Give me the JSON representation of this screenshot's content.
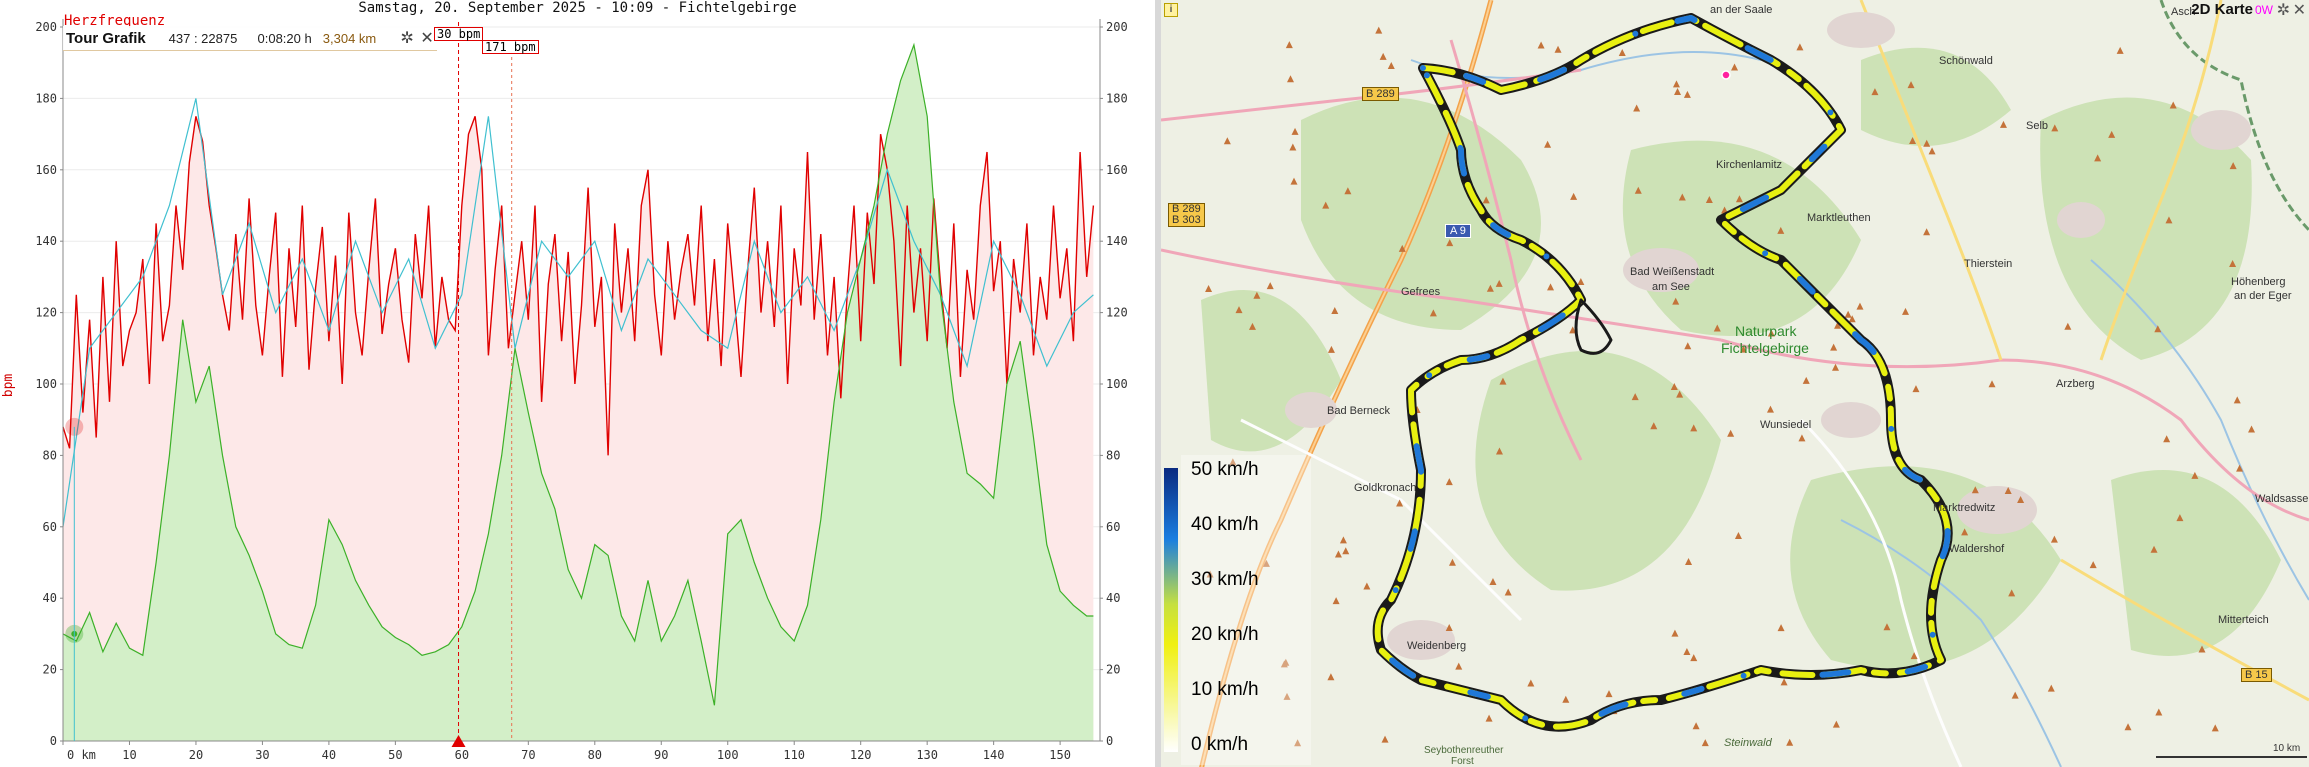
{
  "chart": {
    "title": "Samstag, 20. September 2025 - 10:09 - Fichtelgebirge",
    "series_label": "Herzfrequenz",
    "y_unit": "bpm",
    "tour_box": {
      "title": "Tour Grafik",
      "segment": "437 : 22875",
      "time": "0:08:20 h",
      "distance": "3,304 km"
    },
    "marker_labels": [
      "30 bpm",
      "171 bpm"
    ]
  },
  "map": {
    "title": "2D Karte",
    "watt": "0W",
    "labels": [
      {
        "text": "an der Saale"
      },
      {
        "text": "Asch"
      },
      {
        "text": "Schönwald"
      },
      {
        "text": "Selb"
      },
      {
        "text": "B 289"
      },
      {
        "text": "B 289"
      },
      {
        "text": "B 303"
      },
      {
        "text": "A 9"
      },
      {
        "text": "Kirchenlamitz"
      },
      {
        "text": "Marktleuthen"
      },
      {
        "text": "Thierstein"
      },
      {
        "text": "Höhenberg"
      },
      {
        "text": "an der Eger"
      },
      {
        "text": "Bad Weißenstadt"
      },
      {
        "text": "am See"
      },
      {
        "text": "Gefrees"
      },
      {
        "text": "Naturpark"
      },
      {
        "text": "Fichtelgebirge"
      },
      {
        "text": "Bad Berneck"
      },
      {
        "text": "Wunsiedel"
      },
      {
        "text": "Arzberg"
      },
      {
        "text": "Goldkronach"
      },
      {
        "text": "Marktredwitz"
      },
      {
        "text": "Waldsassen"
      },
      {
        "text": "Waldershof"
      },
      {
        "text": "Weidenberg"
      },
      {
        "text": "Mitterteich"
      },
      {
        "text": "B 15"
      },
      {
        "text": "Steinwald"
      },
      {
        "text": "Seybothenreuther"
      },
      {
        "text": "Forst"
      },
      {
        "text": "10 km"
      }
    ],
    "legend": {
      "unit": "km/h",
      "values": [
        "50",
        "40",
        "30",
        "20",
        "10",
        "0"
      ]
    }
  },
  "chart_data": {
    "type": "line",
    "x_unit": "km",
    "xlim": [
      0,
      156
    ],
    "ylim": [
      0,
      200
    ],
    "x_ticks": [
      0,
      10,
      20,
      30,
      40,
      50,
      60,
      70,
      80,
      90,
      100,
      110,
      120,
      130,
      140,
      150
    ],
    "y_ticks": [
      0,
      20,
      40,
      60,
      80,
      100,
      120,
      140,
      160,
      180,
      200
    ],
    "cursor_km": 59.5,
    "marker_km": 67.5,
    "series": [
      {
        "color": "#e00000",
        "x": [
          0,
          1,
          2,
          3,
          4,
          5,
          6,
          7,
          8,
          9,
          10,
          11,
          12,
          13,
          14,
          15,
          16,
          17,
          18,
          19,
          20,
          21,
          22,
          23,
          24,
          25,
          26,
          27,
          28,
          29,
          30,
          31,
          32,
          33,
          34,
          35,
          36,
          37,
          38,
          39,
          40,
          41,
          42,
          43,
          44,
          45,
          46,
          47,
          48,
          49,
          50,
          51,
          52,
          53,
          54,
          55,
          56,
          57,
          58,
          59,
          60,
          61,
          62,
          63,
          64,
          65,
          66,
          67,
          68,
          69,
          70,
          71,
          72,
          73,
          74,
          75,
          76,
          77,
          78,
          79,
          80,
          81,
          82,
          83,
          84,
          85,
          86,
          87,
          88,
          89,
          90,
          91,
          92,
          93,
          94,
          95,
          96,
          97,
          98,
          99,
          100,
          101,
          102,
          103,
          104,
          105,
          106,
          107,
          108,
          109,
          110,
          111,
          112,
          113,
          114,
          115,
          116,
          117,
          118,
          119,
          120,
          121,
          122,
          123,
          124,
          125,
          126,
          127,
          128,
          129,
          130,
          131,
          132,
          133,
          134,
          135,
          136,
          137,
          138,
          139,
          140,
          141,
          142,
          143,
          144,
          145,
          146,
          147,
          148,
          149,
          150,
          151,
          152,
          153,
          154,
          155
        ],
        "values": [
          88,
          82,
          125,
          92,
          118,
          85,
          130,
          95,
          140,
          105,
          115,
          120,
          135,
          100,
          145,
          112,
          122,
          150,
          132,
          162,
          175,
          168,
          150,
          138,
          125,
          115,
          142,
          118,
          152,
          122,
          108,
          130,
          148,
          102,
          138,
          116,
          150,
          104,
          127,
          144,
          112,
          136,
          100,
          148,
          120,
          108,
          132,
          152,
          114,
          128,
          138,
          118,
          106,
          142,
          124,
          150,
          110,
          130,
          118,
          115,
          150,
          170,
          175,
          160,
          108,
          132,
          150,
          110,
          125,
          140,
          118,
          150,
          95,
          128,
          142,
          112,
          137,
          100,
          122,
          155,
          116,
          130,
          80,
          145,
          120,
          138,
          112,
          150,
          160,
          125,
          108,
          140,
          118,
          132,
          142,
          122,
          150,
          112,
          135,
          105,
          145,
          124,
          102,
          132,
          155,
          120,
          140,
          116,
          150,
          100,
          138,
          122,
          165,
          118,
          142,
          108,
          130,
          96,
          126,
          150,
          112,
          148,
          128,
          170,
          160,
          140,
          105,
          150,
          120,
          138,
          112,
          152,
          128,
          110,
          145,
          102,
          132,
          118,
          150,
          165,
          126,
          140,
          100,
          135,
          120,
          145,
          108,
          130,
          118,
          150,
          124,
          138,
          112,
          165,
          130,
          150
        ]
      },
      {
        "color": "#40c0d0",
        "x": [
          0,
          4,
          8,
          12,
          16,
          20,
          24,
          28,
          32,
          36,
          40,
          44,
          48,
          52,
          56,
          60,
          64,
          68,
          72,
          76,
          80,
          84,
          88,
          92,
          96,
          100,
          104,
          108,
          112,
          116,
          120,
          124,
          128,
          132,
          136,
          140,
          144,
          148,
          152,
          155
        ],
        "values": [
          60,
          110,
          120,
          130,
          150,
          180,
          125,
          145,
          120,
          135,
          115,
          140,
          120,
          135,
          110,
          125,
          175,
          110,
          140,
          130,
          140,
          115,
          135,
          125,
          115,
          110,
          140,
          120,
          130,
          115,
          135,
          160,
          140,
          125,
          105,
          140,
          125,
          105,
          120,
          125
        ]
      },
      {
        "color": "#3cb028",
        "x": [
          0,
          2,
          4,
          6,
          8,
          10,
          12,
          14,
          16,
          18,
          20,
          22,
          24,
          26,
          28,
          30,
          32,
          34,
          36,
          38,
          40,
          42,
          44,
          46,
          48,
          50,
          52,
          54,
          56,
          58,
          60,
          62,
          64,
          66,
          68,
          70,
          72,
          74,
          76,
          78,
          80,
          82,
          84,
          86,
          88,
          90,
          92,
          94,
          96,
          98,
          100,
          102,
          104,
          106,
          108,
          110,
          112,
          114,
          116,
          118,
          120,
          122,
          124,
          126,
          128,
          130,
          132,
          134,
          136,
          138,
          140,
          142,
          144,
          146,
          148,
          150,
          152,
          154,
          155
        ],
        "values": [
          30,
          28,
          36,
          25,
          33,
          26,
          24,
          50,
          80,
          118,
          95,
          105,
          80,
          60,
          52,
          42,
          30,
          27,
          26,
          38,
          62,
          55,
          45,
          38,
          32,
          29,
          27,
          24,
          25,
          27,
          32,
          42,
          58,
          80,
          110,
          92,
          75,
          65,
          48,
          40,
          55,
          52,
          35,
          28,
          45,
          28,
          35,
          45,
          28,
          10,
          58,
          62,
          50,
          40,
          32,
          28,
          38,
          62,
          95,
          120,
          135,
          150,
          170,
          185,
          195,
          175,
          125,
          95,
          75,
          72,
          68,
          100,
          112,
          85,
          55,
          42,
          38,
          35,
          35
        ]
      }
    ]
  }
}
